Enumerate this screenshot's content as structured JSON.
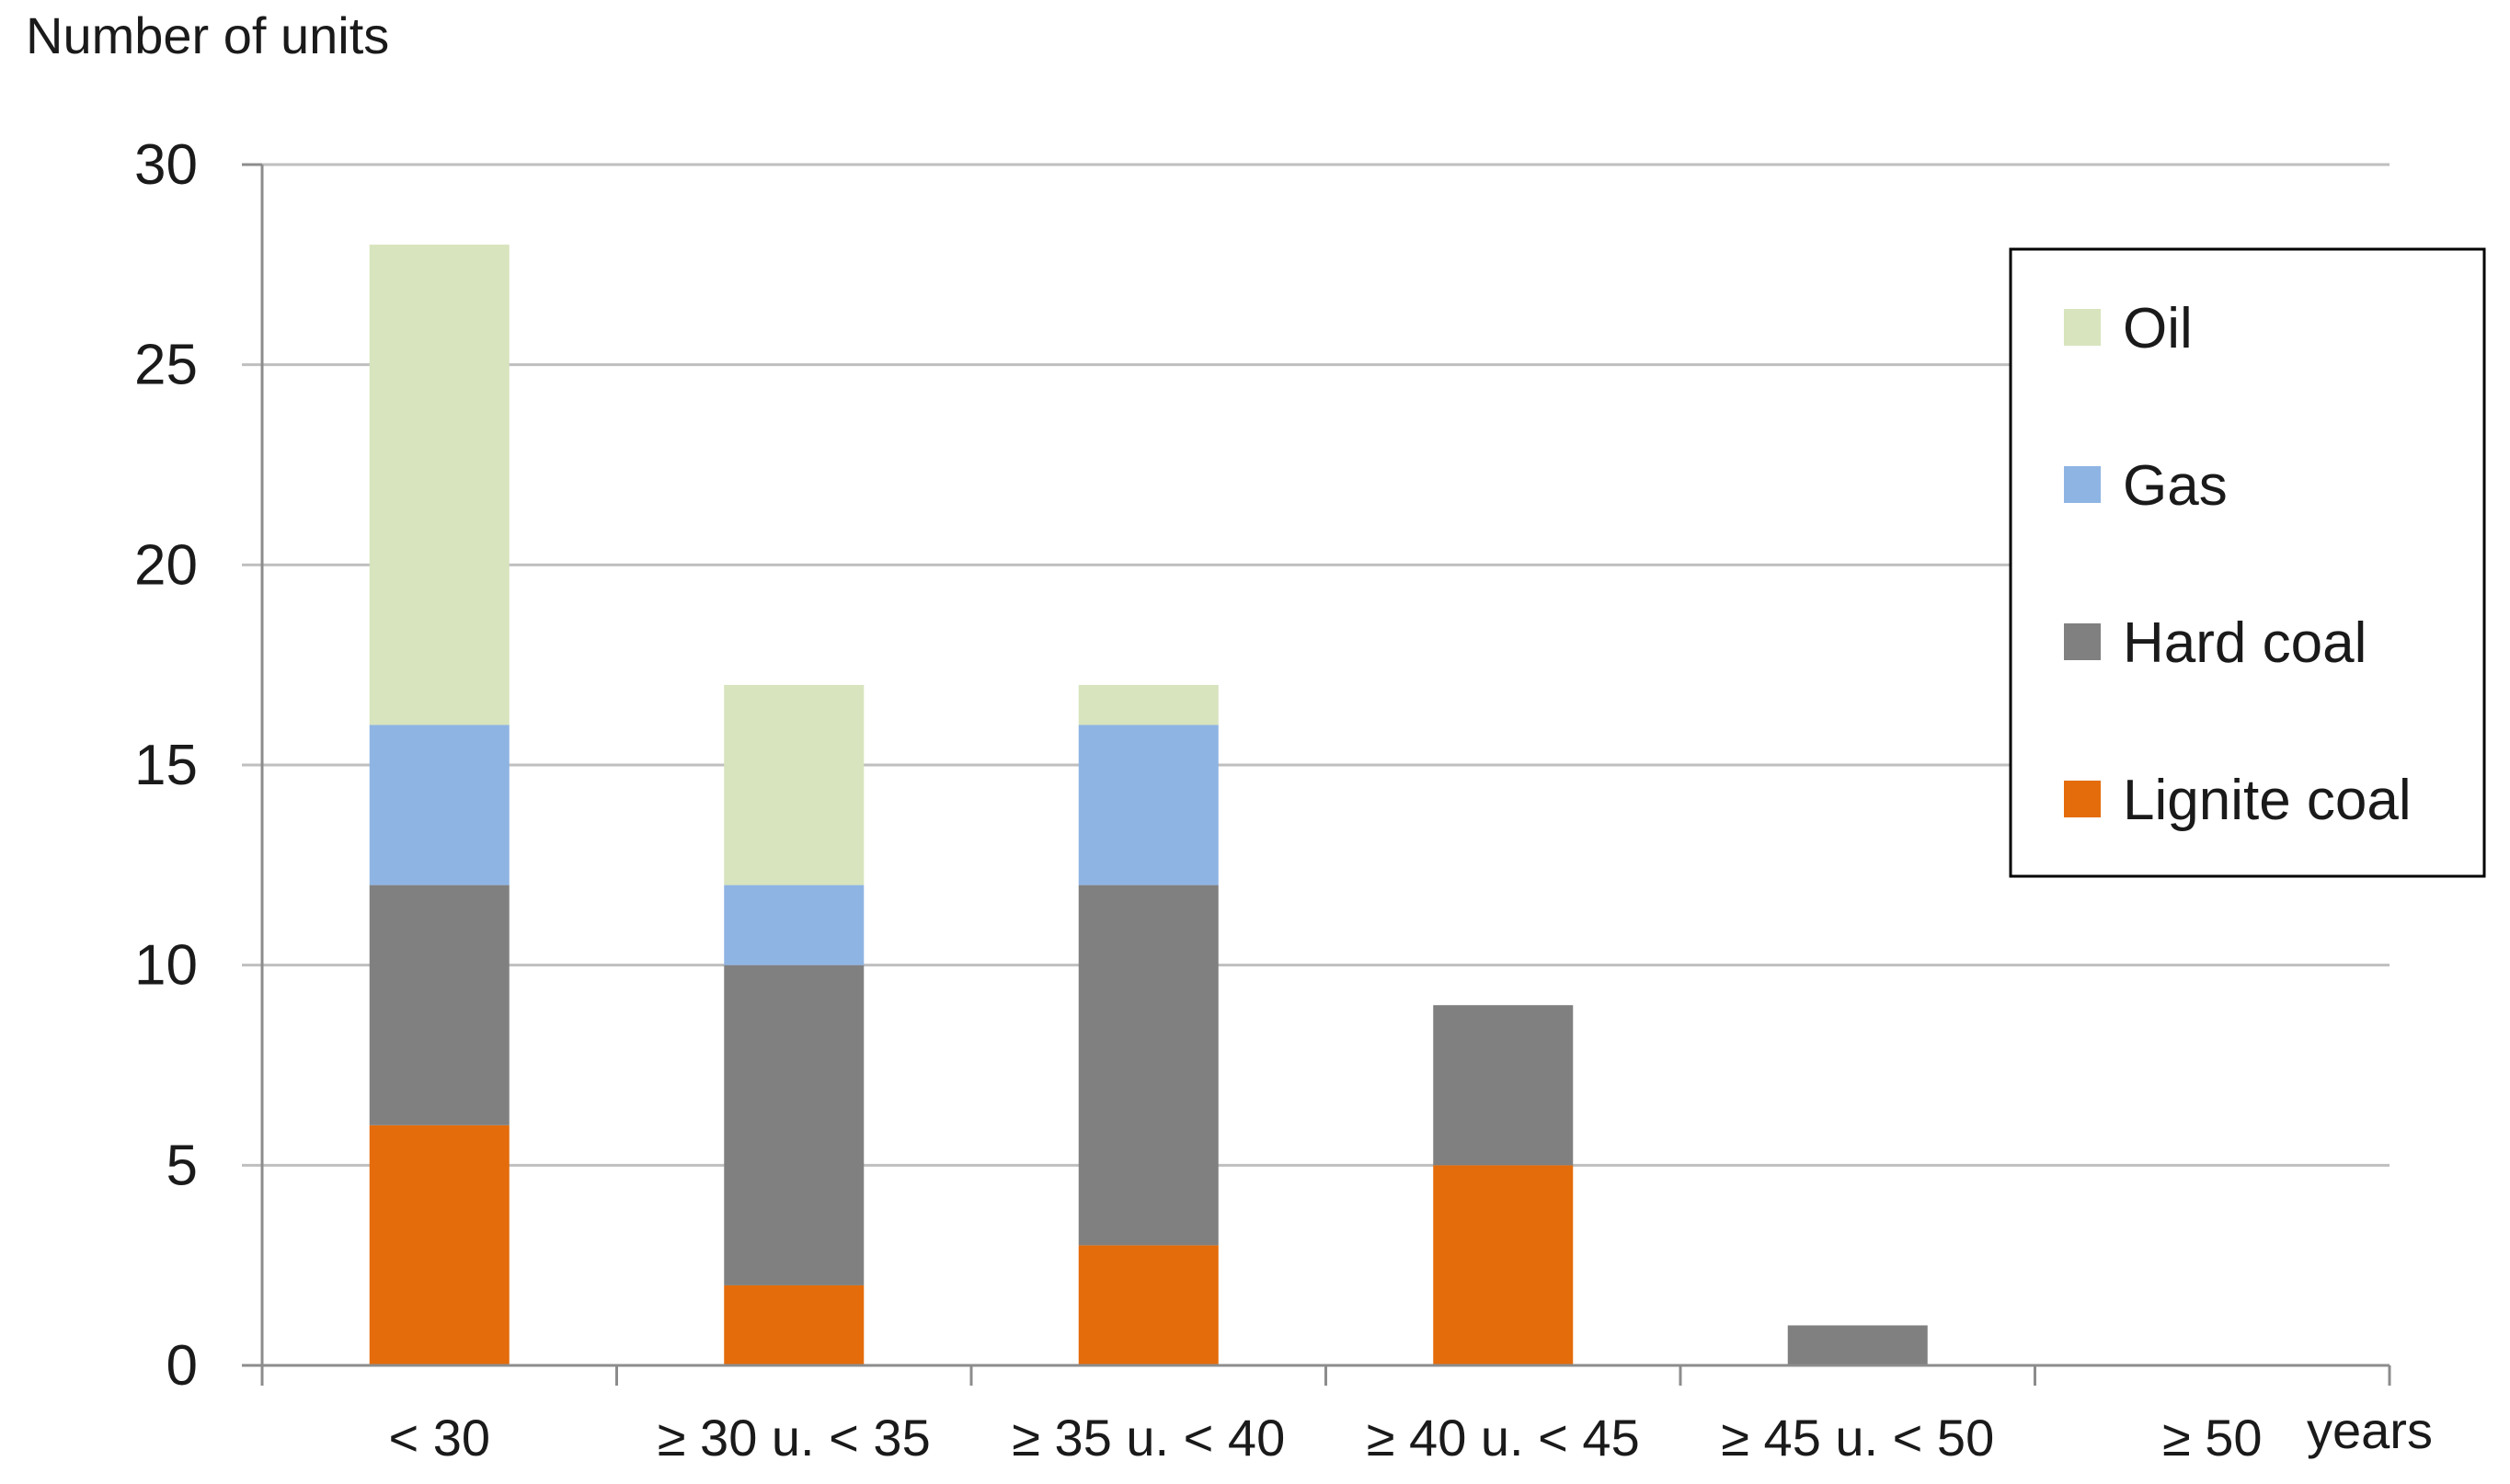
{
  "chart_data": {
    "type": "bar",
    "stacked": true,
    "title": "",
    "ylabel": "Number of units",
    "xlabel": "years",
    "ylim": [
      0,
      30
    ],
    "yticks": [
      0,
      5,
      10,
      15,
      20,
      25,
      30
    ],
    "grid": true,
    "legend_position": "right",
    "categories": [
      "< 30",
      "≥ 30 u. < 35",
      "≥ 35 u. < 40",
      "≥ 40 u. < 45",
      "≥ 45 u. < 50",
      "≥ 50"
    ],
    "series": [
      {
        "name": "Lignite coal",
        "color": "#e46c0a",
        "values": [
          6,
          2,
          3,
          5,
          0,
          0
        ]
      },
      {
        "name": "Hard coal",
        "color": "#808080",
        "values": [
          6,
          8,
          9,
          4,
          1,
          0
        ]
      },
      {
        "name": "Gas",
        "color": "#8eb4e3",
        "values": [
          4,
          2,
          4,
          0,
          0,
          0
        ]
      },
      {
        "name": "Oil",
        "color": "#d7e4bd",
        "values": [
          12,
          5,
          1,
          0,
          0,
          0
        ]
      }
    ],
    "legend_order": [
      "Oil",
      "Gas",
      "Hard coal",
      "Lignite coal"
    ]
  },
  "colors": {
    "grid": "#bfbfbf",
    "axis": "#8c8c8c",
    "legend_border": "#000000",
    "text": "#1a1a1a"
  }
}
